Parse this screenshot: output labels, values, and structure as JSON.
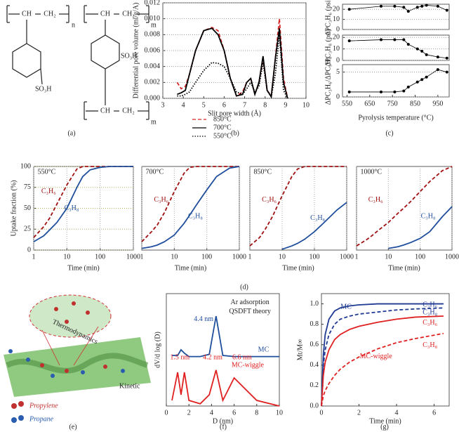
{
  "figure": {
    "panel_labels": [
      "(a)",
      "(b)",
      "(c)",
      "(d)",
      "(e)",
      "(f)",
      "(g)"
    ],
    "structure_texts": [
      "CH",
      "CH₂",
      "n",
      "SO₃H",
      "CH",
      "CH₂",
      "SO₃H",
      "CH",
      "CH₂",
      "m",
      "m"
    ],
    "illustration": {
      "thermo": "Thermodynamics",
      "kinetic": "Kinetic",
      "propylene": "Propylene",
      "propane": "Propane"
    }
  },
  "chart_data": [
    {
      "type": "line",
      "xlabel": "Slit pore width (Å)",
      "ylabel": "Differential pore volume (ml/g/A)",
      "xlim": [
        3,
        10
      ],
      "xticks": [
        3,
        4,
        5,
        6,
        7,
        8,
        9,
        10
      ],
      "ylim": [
        0,
        0.012
      ],
      "yticks": [
        {
          "value": 0,
          "label": "0.000"
        },
        {
          "value": 0.002,
          "label": "0.002"
        },
        {
          "value": 0.004,
          "label": "0.004"
        },
        {
          "value": 0.006,
          "label": "0.006"
        },
        {
          "value": 0.008,
          "label": "0.008"
        },
        {
          "value": 0.01,
          "label": "0.010"
        },
        {
          "value": 0.012,
          "label": "0.012"
        }
      ],
      "grid": true,
      "legend": "below",
      "x": [
        3.7,
        3.9,
        4.1,
        4.3,
        4.6,
        5.0,
        5.4,
        5.7,
        6.0,
        6.3,
        6.6,
        6.9,
        7.1,
        7.3,
        7.5,
        7.7,
        7.9,
        8.1,
        8.3,
        8.5,
        8.7,
        8.9,
        9.1
      ],
      "series": [
        {
          "name": "850°C",
          "color": "#d62728",
          "dash": "dashed",
          "values": [
            0.002,
            0.0012,
            0.0015,
            0.003,
            0.006,
            0.0085,
            0.0089,
            0.0085,
            0.006,
            0.0025,
            0.0003,
            0.0008,
            0.002,
            0.0025,
            0.0005,
            0.002,
            0.005,
            0.001,
            0.0003,
            0.005,
            0.01,
            0.0025,
            0
          ]
        },
        {
          "name": "700°C",
          "color": "#000000",
          "dash": "solid",
          "values": [
            0.0005,
            0.0007,
            0.001,
            0.003,
            0.006,
            0.0085,
            0.0088,
            0.008,
            0.006,
            0.0025,
            0.0003,
            0.0005,
            0.002,
            0.0025,
            0.0005,
            0.002,
            0.0053,
            0.001,
            0.0002,
            0.005,
            0.0088,
            0.002,
            0
          ]
        },
        {
          "name": "550°C",
          "color": "#000000",
          "dash": "dotted",
          "values": [
            0.0003,
            0.0003,
            0.0005,
            0.0008,
            0.002,
            0.0035,
            0.0045,
            0.0044,
            0.004,
            0.0025,
            0.0008,
            0.0005,
            0.0012,
            0.002,
            0.0008,
            0.0015,
            0.0045,
            0.001,
            0.0002,
            0.003,
            0.008,
            0.001,
            0
          ]
        }
      ]
    },
    {
      "type": "scatter",
      "ylabel": "ΔPC₃H₆ (psi)",
      "xlim": [
        530,
        1000
      ],
      "ylim": [
        0,
        25
      ],
      "yticks": [
        0,
        10,
        20
      ],
      "grid": true,
      "x": [
        560,
        700,
        760,
        800,
        820,
        860,
        880,
        900,
        950,
        990
      ],
      "series": [
        {
          "color": "#000000",
          "marker": "circle",
          "values": [
            20,
            23,
            23,
            22,
            18,
            22,
            23,
            24,
            23,
            19
          ]
        }
      ]
    },
    {
      "type": "scatter",
      "ylabel": "ΔPC₃H₈ (psi)",
      "xlim": [
        530,
        1000
      ],
      "ylim": [
        0,
        22
      ],
      "yticks": [
        0,
        10,
        20
      ],
      "grid": true,
      "x": [
        560,
        700,
        760,
        800,
        820,
        860,
        880,
        900,
        950,
        990
      ],
      "series": [
        {
          "color": "#000000",
          "marker": "circle",
          "values": [
            17,
            18,
            18,
            18,
            14,
            10,
            8,
            5,
            3,
            2
          ]
        }
      ]
    },
    {
      "type": "scatter",
      "ylabel": "ΔPC₃H₆/ΔPC₃H₈",
      "xlabel": "Pyrolysis temperature (°C)",
      "xlim": [
        530,
        1000
      ],
      "xticks": [
        550,
        650,
        750,
        850,
        950
      ],
      "ylim": [
        0,
        6.5
      ],
      "yticks": [
        0,
        5
      ],
      "grid": true,
      "x": [
        560,
        700,
        760,
        800,
        820,
        860,
        880,
        900,
        950,
        990
      ],
      "series": [
        {
          "color": "#000000",
          "marker": "circle",
          "values": [
            1,
            1,
            1,
            1.2,
            2,
            3,
            3.5,
            4,
            5.5,
            5
          ]
        }
      ]
    },
    {
      "type": "line",
      "annotations": [
        "550°C"
      ],
      "xlabel": "Time (min)",
      "ylabel": "Uptake fraction (%)",
      "xlog": true,
      "xlim": [
        1,
        1000
      ],
      "xticks": [
        1,
        10,
        100,
        1000
      ],
      "ylim": [
        0,
        100
      ],
      "yticks": [
        0,
        25,
        50,
        75,
        100
      ],
      "grid": true,
      "x": [
        1,
        2,
        3,
        5,
        10,
        20,
        30,
        50,
        100,
        200,
        500,
        1000
      ],
      "series": [
        {
          "name": "C₃H₆",
          "color": "#a01010",
          "dash": "dashed",
          "values": [
            15,
            28,
            38,
            55,
            78,
            97,
            100,
            100,
            100,
            100,
            100,
            100
          ]
        },
        {
          "name": "C₃H₈",
          "color": "#1f4e9c",
          "dash": "solid",
          "values": [
            10,
            17,
            24,
            33,
            50,
            75,
            88,
            96,
            99,
            100,
            100,
            100
          ]
        }
      ]
    },
    {
      "type": "line",
      "annotations": [
        "700°C"
      ],
      "xlabel": "Time (min)",
      "xlog": true,
      "xlim": [
        1,
        1000
      ],
      "xticks": [
        1,
        10,
        100,
        1000
      ],
      "ylim": [
        0,
        100
      ],
      "grid": true,
      "x": [
        1,
        2,
        3,
        5,
        10,
        20,
        30,
        50,
        100,
        200,
        500,
        1000
      ],
      "series": [
        {
          "name": "C₃H₆",
          "color": "#a01010",
          "dash": "dashed",
          "values": [
            10,
            22,
            30,
            45,
            70,
            92,
            99,
            100,
            100,
            100,
            100,
            100
          ]
        },
        {
          "name": "C₃H₈",
          "color": "#1f4e9c",
          "dash": "solid",
          "values": [
            2,
            4,
            6,
            10,
            18,
            32,
            42,
            55,
            72,
            88,
            98,
            100
          ]
        }
      ]
    },
    {
      "type": "line",
      "annotations": [
        "850°C"
      ],
      "xlabel": "Time (min)",
      "xlog": true,
      "xlim": [
        1,
        1000
      ],
      "xticks": [
        1,
        10,
        100,
        1000
      ],
      "ylim": [
        0,
        100
      ],
      "grid": true,
      "x": [
        1,
        2,
        3,
        5,
        10,
        20,
        30,
        50,
        100,
        200,
        500,
        1000
      ],
      "series": [
        {
          "name": "C₃H₆",
          "color": "#a01010",
          "dash": "dashed",
          "values": [
            5,
            15,
            25,
            40,
            65,
            88,
            97,
            100,
            100,
            100,
            100,
            100
          ]
        },
        {
          "name": "C₃H₈",
          "color": "#1f4e9c",
          "dash": "solid",
          "values": [
            null,
            null,
            null,
            null,
            1,
            5,
            8,
            13,
            22,
            33,
            48,
            57
          ]
        }
      ]
    },
    {
      "type": "line",
      "annotations": [
        "1000°C"
      ],
      "xlabel": "Time (min)",
      "xlog": true,
      "xlim": [
        1,
        1000
      ],
      "xticks": [
        1,
        10,
        100,
        1000
      ],
      "ylim": [
        0,
        100
      ],
      "grid": true,
      "x": [
        1,
        2,
        3,
        5,
        10,
        20,
        30,
        50,
        100,
        200,
        500,
        1000
      ],
      "series": [
        {
          "name": "C₃H₆",
          "color": "#a01010",
          "dash": "dashed",
          "values": [
            5,
            12,
            17,
            24,
            33,
            44,
            50,
            58,
            70,
            82,
            95,
            100
          ]
        },
        {
          "name": "C₃H₈",
          "color": "#1f4e9c",
          "dash": "solid",
          "values": [
            null,
            null,
            null,
            null,
            2,
            4,
            6,
            9,
            14,
            22,
            40,
            52
          ]
        }
      ]
    },
    {
      "type": "line",
      "annotations": [
        "Ar adsorption",
        "QSDFT theory",
        "4.4 nm",
        "1.5 nm",
        "4.2 nm",
        "6.6 nm"
      ],
      "xlabel": "D (nm)",
      "ylabel": "dV/d log (D)",
      "xlim": [
        0,
        10
      ],
      "xticks": [
        0,
        2,
        4,
        6,
        8,
        10
      ],
      "ylim": [
        0,
        1
      ],
      "x": [
        0.5,
        1,
        1.3,
        1.6,
        2,
        3,
        3.8,
        4.4,
        5,
        6,
        8,
        10
      ],
      "series": [
        {
          "name": "MC",
          "color": "#1f4e9c",
          "dash": "solid",
          "values": [
            0.45,
            0.45,
            0.5,
            0.47,
            0.44,
            0.44,
            0.46,
            0.8,
            0.45,
            0.44,
            0.44,
            0.44
          ]
        },
        {
          "name": "MC-wiggle",
          "color": "#e02020",
          "dash": "solid",
          "values": [
            0.05,
            0.3,
            0.1,
            0.3,
            0.05,
            0.02,
            0.1,
            0.32,
            0.05,
            0.25,
            0.05,
            0
          ]
        }
      ]
    },
    {
      "type": "line",
      "annotations": [
        "MC",
        "MC-wiggle"
      ],
      "xlabel": "Time (min)",
      "ylabel": "Mt/M∞",
      "xlim": [
        0,
        6.8
      ],
      "xticks": [
        0,
        2,
        4,
        6
      ],
      "ylim": [
        0,
        1.1
      ],
      "yticks": [
        {
          "value": 0,
          "label": "0.0"
        },
        {
          "value": 0.2,
          "label": "0.2"
        },
        {
          "value": 0.4,
          "label": "0.4"
        },
        {
          "value": 0.6,
          "label": "0.6"
        },
        {
          "value": 0.8,
          "label": "0.8"
        },
        {
          "value": 1,
          "label": "1.0"
        }
      ],
      "x": [
        0,
        0.1,
        0.2,
        0.4,
        0.7,
        1,
        1.5,
        2,
        3,
        4,
        5,
        6.5
      ],
      "series": [
        {
          "name": "C₃H₆",
          "color": "#1f3a93",
          "dash": "solid",
          "values": [
            0,
            0.5,
            0.7,
            0.85,
            0.93,
            0.96,
            0.98,
            0.99,
            1,
            1,
            1,
            1
          ]
        },
        {
          "name": "C₃H₈",
          "color": "#1f3a93",
          "dash": "dashed",
          "values": [
            0,
            0.4,
            0.55,
            0.7,
            0.8,
            0.85,
            0.88,
            0.9,
            0.92,
            0.94,
            0.95,
            0.96
          ]
        },
        {
          "name": "C₃H₆",
          "color": "#e02020",
          "dash": "solid",
          "values": [
            0,
            0.3,
            0.43,
            0.55,
            0.65,
            0.7,
            0.75,
            0.78,
            0.82,
            0.85,
            0.87,
            0.88
          ]
        },
        {
          "name": "C₃H₈",
          "color": "#e02020",
          "dash": "dashed",
          "values": [
            0,
            0.1,
            0.15,
            0.22,
            0.3,
            0.36,
            0.43,
            0.48,
            0.56,
            0.62,
            0.66,
            0.71
          ]
        }
      ]
    }
  ]
}
